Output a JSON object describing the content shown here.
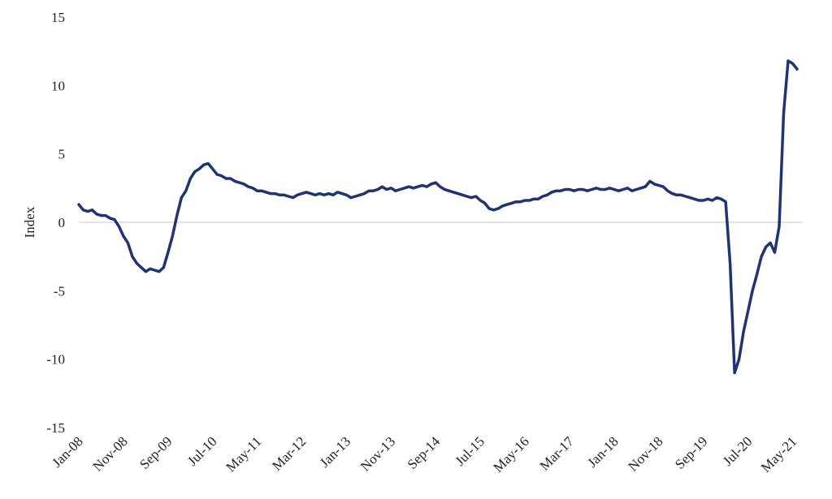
{
  "chart_data": {
    "type": "line",
    "y_label": "Index",
    "categories": [
      "Jan-08",
      null,
      null,
      null,
      null,
      null,
      null,
      null,
      null,
      null,
      "Nov-08",
      null,
      null,
      null,
      null,
      null,
      null,
      null,
      null,
      null,
      "Sep-09",
      null,
      null,
      null,
      null,
      null,
      null,
      null,
      null,
      null,
      "Jul-10",
      null,
      null,
      null,
      null,
      null,
      null,
      null,
      null,
      null,
      "May-11",
      null,
      null,
      null,
      null,
      null,
      null,
      null,
      null,
      null,
      "Mar-12",
      null,
      null,
      null,
      null,
      null,
      null,
      null,
      null,
      null,
      "Jan-13",
      null,
      null,
      null,
      null,
      null,
      null,
      null,
      null,
      null,
      "Nov-13",
      null,
      null,
      null,
      null,
      null,
      null,
      null,
      null,
      null,
      "Sep-14",
      null,
      null,
      null,
      null,
      null,
      null,
      null,
      null,
      null,
      "Jul-15",
      null,
      null,
      null,
      null,
      null,
      null,
      null,
      null,
      null,
      "May-16",
      null,
      null,
      null,
      null,
      null,
      null,
      null,
      null,
      null,
      "Mar-17",
      null,
      null,
      null,
      null,
      null,
      null,
      null,
      null,
      null,
      "Jan-18",
      null,
      null,
      null,
      null,
      null,
      null,
      null,
      null,
      null,
      "Nov-18",
      null,
      null,
      null,
      null,
      null,
      null,
      null,
      null,
      null,
      "Sep-19",
      null,
      null,
      null,
      null,
      null,
      null,
      null,
      null,
      null,
      "Jul-20",
      null,
      null,
      null,
      null,
      null,
      null,
      null,
      null,
      null,
      "May-21",
      null
    ],
    "values": [
      1.3,
      0.9,
      0.8,
      0.9,
      0.6,
      0.5,
      0.5,
      0.3,
      0.2,
      -0.3,
      -1.0,
      -1.5,
      -2.5,
      -3.0,
      -3.3,
      -3.6,
      -3.4,
      -3.5,
      -3.6,
      -3.3,
      -2.2,
      -1.0,
      0.5,
      1.8,
      2.3,
      3.2,
      3.7,
      3.9,
      4.2,
      4.3,
      3.9,
      3.5,
      3.4,
      3.2,
      3.2,
      3.0,
      2.9,
      2.8,
      2.6,
      2.5,
      2.3,
      2.3,
      2.2,
      2.1,
      2.1,
      2.0,
      2.0,
      1.9,
      1.8,
      2.0,
      2.1,
      2.2,
      2.1,
      2.0,
      2.1,
      2.0,
      2.1,
      2.0,
      2.2,
      2.1,
      2.0,
      1.8,
      1.9,
      2.0,
      2.1,
      2.3,
      2.3,
      2.4,
      2.6,
      2.4,
      2.5,
      2.3,
      2.4,
      2.5,
      2.6,
      2.5,
      2.6,
      2.7,
      2.6,
      2.8,
      2.9,
      2.6,
      2.4,
      2.3,
      2.2,
      2.1,
      2.0,
      1.9,
      1.8,
      1.9,
      1.6,
      1.4,
      1.0,
      0.9,
      1.0,
      1.2,
      1.3,
      1.4,
      1.5,
      1.5,
      1.6,
      1.6,
      1.7,
      1.7,
      1.9,
      2.0,
      2.2,
      2.3,
      2.3,
      2.4,
      2.4,
      2.3,
      2.4,
      2.4,
      2.3,
      2.4,
      2.5,
      2.4,
      2.4,
      2.5,
      2.4,
      2.3,
      2.4,
      2.5,
      2.3,
      2.4,
      2.5,
      2.6,
      3.0,
      2.8,
      2.7,
      2.6,
      2.3,
      2.1,
      2.0,
      2.0,
      1.9,
      1.8,
      1.7,
      1.6,
      1.6,
      1.7,
      1.6,
      1.8,
      1.7,
      1.5,
      -3.0,
      -11.0,
      -10.0,
      -8.0,
      -6.5,
      -5.0,
      -3.8,
      -2.5,
      -1.8,
      -1.5,
      -2.2,
      -0.3,
      8.0,
      11.8,
      11.6,
      11.2
    ],
    "color": "#1f3470",
    "ylim": [
      -15,
      15
    ],
    "yticks": [
      -15,
      -10,
      -5,
      0,
      5,
      10,
      15
    ],
    "zero_line": true
  }
}
